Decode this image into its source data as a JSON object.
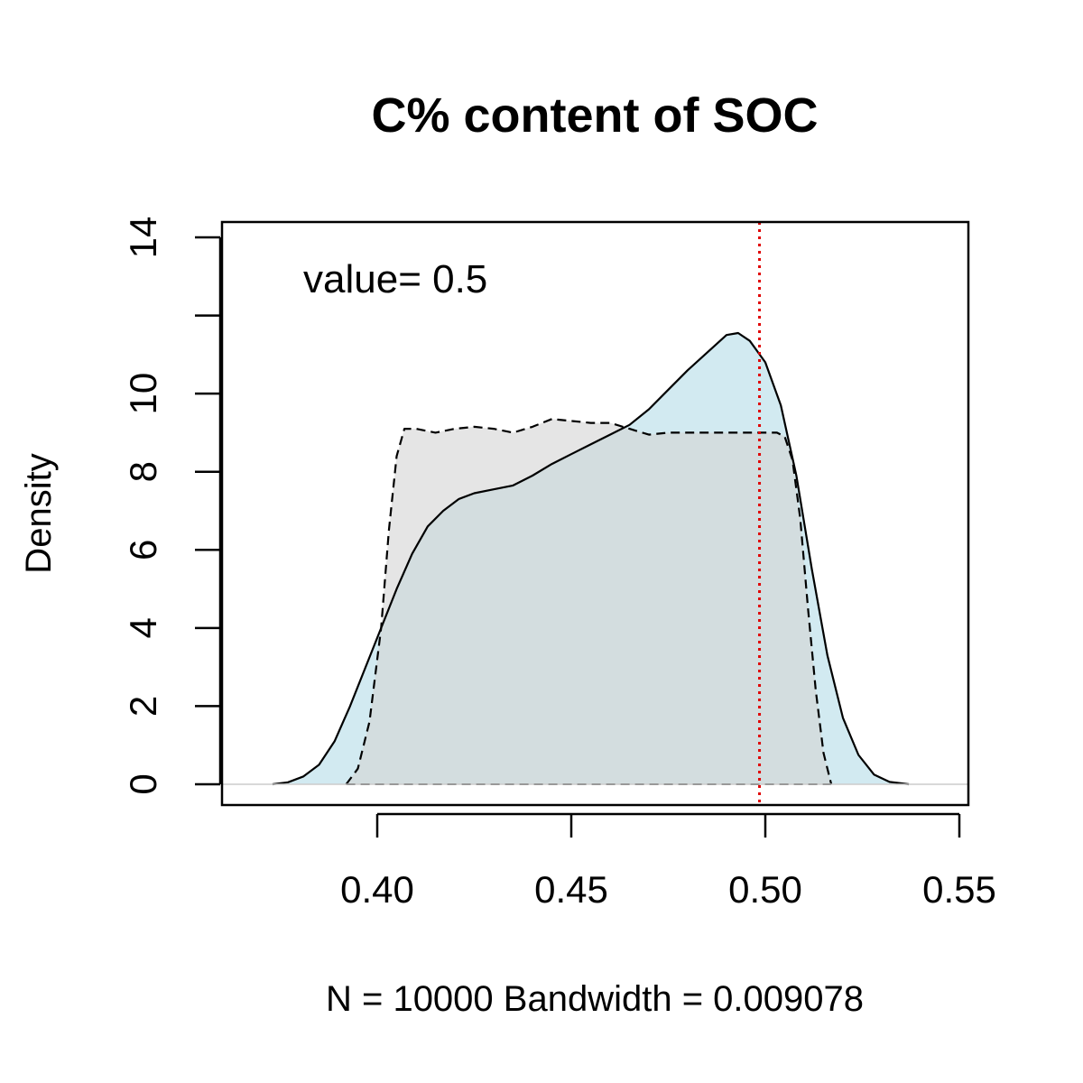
{
  "chart_data": {
    "type": "area",
    "title": "C% content of SOC",
    "xlabel": "N = 10000   Bandwidth = 0.009078",
    "ylabel": "Density",
    "annotation": "value= 0.5",
    "xlim": [
      0.36,
      0.55
    ],
    "ylim": [
      0,
      14
    ],
    "x_ticks": [
      0.4,
      0.45,
      0.5,
      0.55
    ],
    "x_tick_labels": [
      "0.40",
      "0.45",
      "0.50",
      "0.55"
    ],
    "y_ticks": [
      0,
      2,
      4,
      6,
      8,
      10,
      12,
      14
    ],
    "y_tick_labels": [
      "0",
      "2",
      "4",
      "6",
      "8",
      "10",
      "",
      "14"
    ],
    "grid": false,
    "reference_line": {
      "x": 0.4985,
      "color": "#e00000",
      "style": "dotted"
    },
    "series": [
      {
        "style": "solid",
        "fill": "#add8e6",
        "fill_opacity": 0.55,
        "x": [
          0.373,
          0.377,
          0.381,
          0.385,
          0.389,
          0.393,
          0.397,
          0.401,
          0.405,
          0.409,
          0.413,
          0.417,
          0.421,
          0.425,
          0.43,
          0.435,
          0.44,
          0.445,
          0.45,
          0.455,
          0.46,
          0.465,
          0.47,
          0.475,
          0.48,
          0.485,
          0.49,
          0.493,
          0.496,
          0.5,
          0.504,
          0.508,
          0.512,
          0.516,
          0.52,
          0.524,
          0.528,
          0.532,
          0.537
        ],
        "y": [
          0.0,
          0.05,
          0.2,
          0.5,
          1.1,
          2.0,
          3.0,
          4.0,
          5.0,
          5.9,
          6.6,
          7.0,
          7.3,
          7.45,
          7.55,
          7.65,
          7.9,
          8.2,
          8.45,
          8.7,
          8.95,
          9.2,
          9.6,
          10.1,
          10.6,
          11.05,
          11.5,
          11.55,
          11.35,
          10.8,
          9.7,
          7.9,
          5.5,
          3.3,
          1.7,
          0.75,
          0.25,
          0.06,
          0.0
        ]
      },
      {
        "style": "dashed",
        "fill": "#d3d3d3",
        "fill_opacity": 0.6,
        "x": [
          0.392,
          0.395,
          0.398,
          0.401,
          0.403,
          0.405,
          0.407,
          0.41,
          0.415,
          0.42,
          0.425,
          0.43,
          0.435,
          0.44,
          0.445,
          0.45,
          0.455,
          0.46,
          0.465,
          0.47,
          0.475,
          0.48,
          0.485,
          0.49,
          0.495,
          0.5,
          0.503,
          0.505,
          0.507,
          0.509,
          0.511,
          0.513,
          0.515,
          0.517
        ],
        "y": [
          0.0,
          0.4,
          1.6,
          4.0,
          6.5,
          8.4,
          9.1,
          9.1,
          9.0,
          9.1,
          9.15,
          9.1,
          9.0,
          9.15,
          9.35,
          9.3,
          9.25,
          9.25,
          9.1,
          8.95,
          9.0,
          9.0,
          9.0,
          9.0,
          9.0,
          9.0,
          9.0,
          8.9,
          8.3,
          6.8,
          4.5,
          2.4,
          0.8,
          0.0
        ]
      }
    ]
  }
}
